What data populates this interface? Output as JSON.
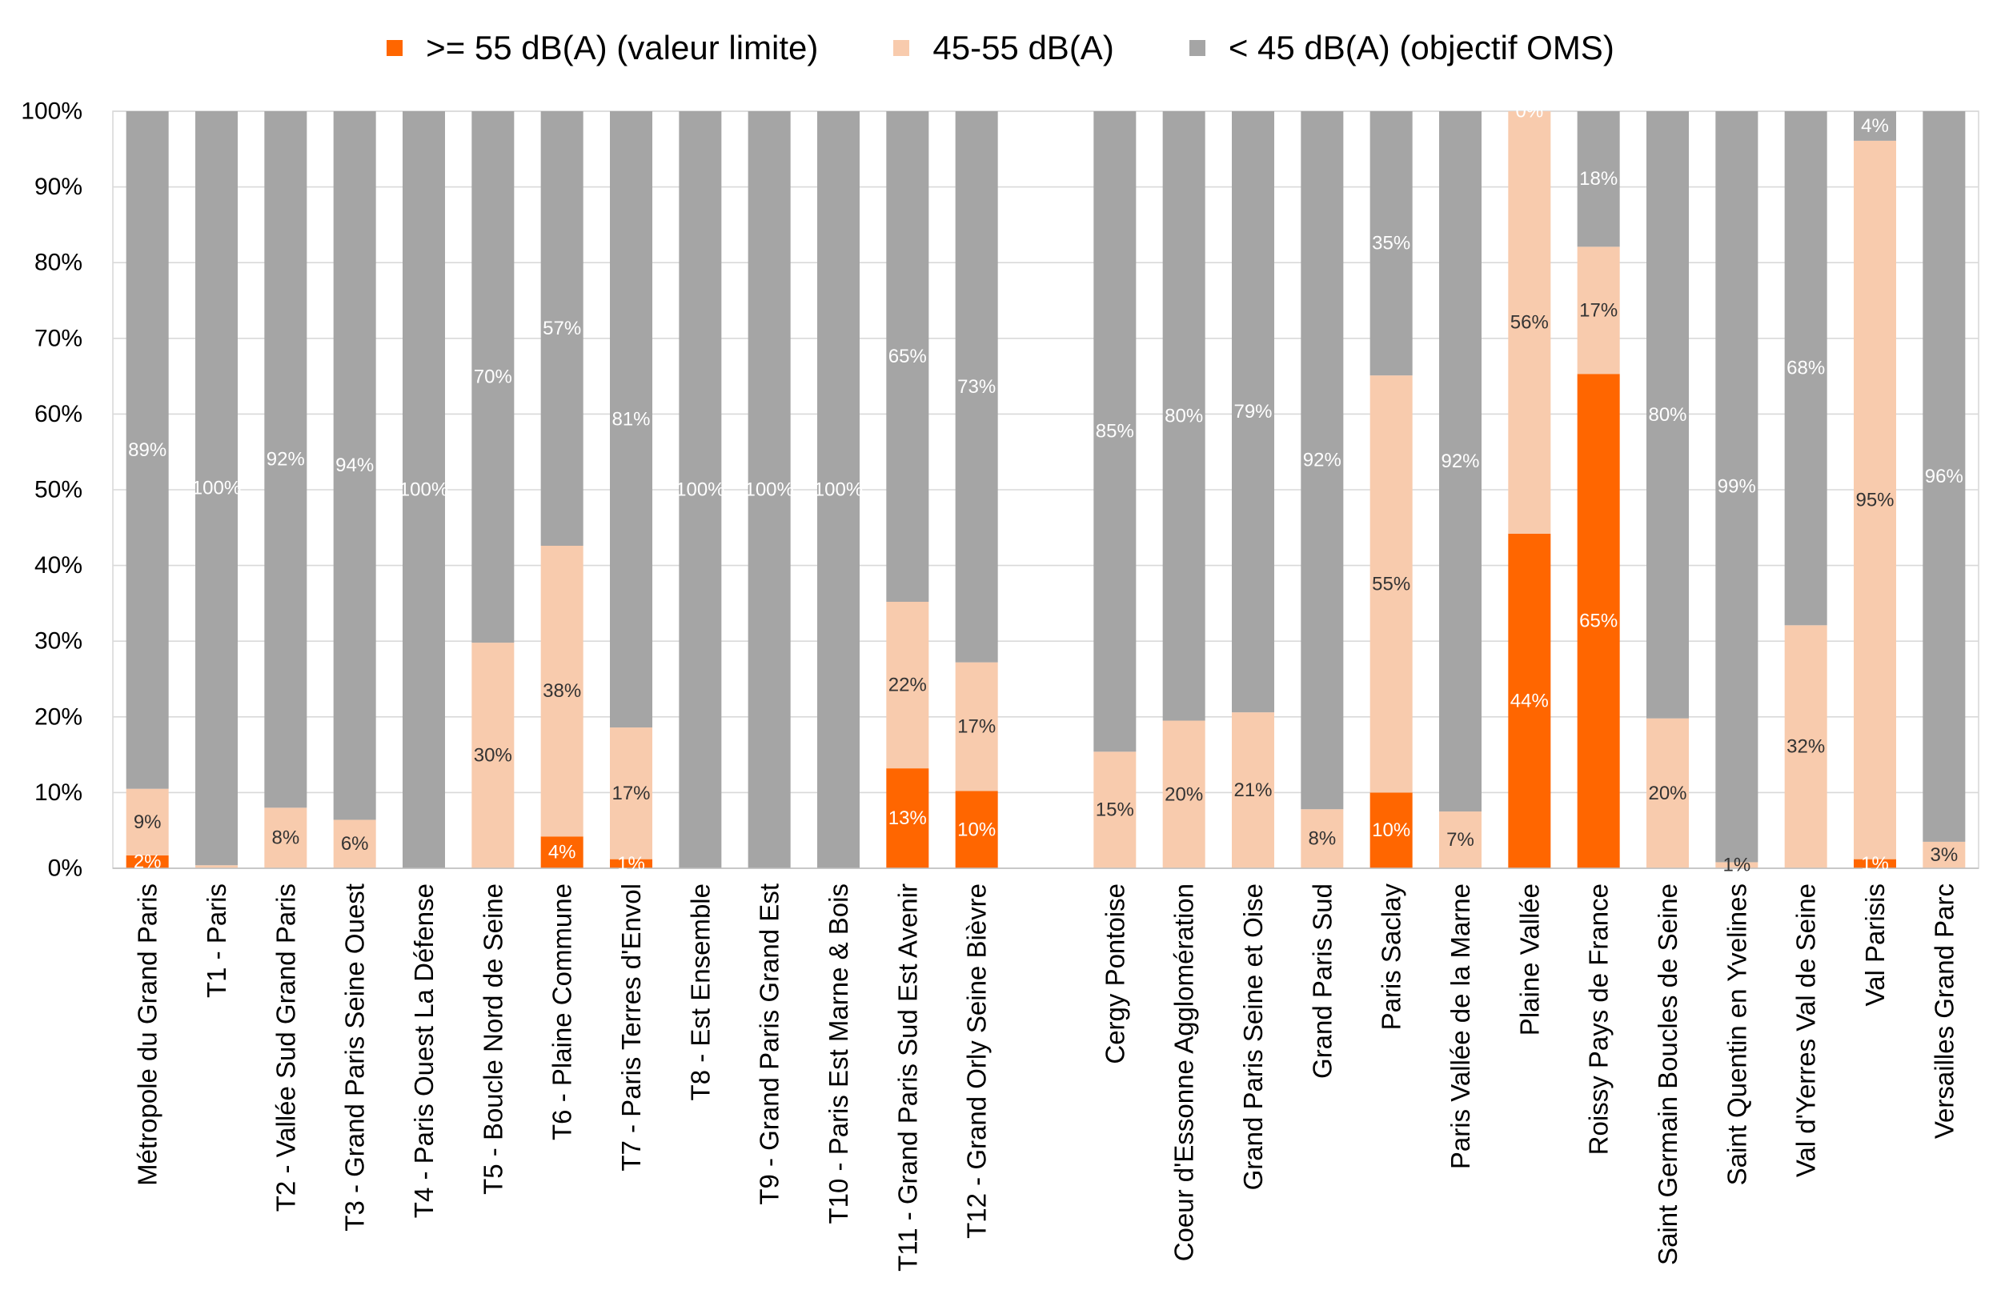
{
  "chart_data": {
    "type": "bar",
    "stacked": "percent",
    "title": "",
    "xlabel": "",
    "ylabel": "",
    "ylim": [
      0,
      100
    ],
    "yticks": [
      0,
      10,
      20,
      30,
      40,
      50,
      60,
      70,
      80,
      90,
      100
    ],
    "ytick_labels": [
      "0%",
      "10%",
      "20%",
      "30%",
      "40%",
      "50%",
      "60%",
      "70%",
      "80%",
      "90%",
      "100%"
    ],
    "grid": true,
    "legend_position": "top",
    "categories": [
      "Métropole du Grand Paris",
      "T1 - Paris",
      "T2 - Vallée Sud Grand Paris",
      "T3 - Grand Paris Seine Ouest",
      "T4 - Paris Ouest La Défense",
      "T5 - Boucle Nord de Seine",
      "T6 - Plaine Commune",
      "T7 - Paris Terres d'Envol",
      "T8 - Est Ensemble",
      "T9 - Grand Paris Grand Est",
      "T10 - Paris Est Marne & Bois",
      "T11 - Grand Paris Sud Est Avenir",
      "T12 - Grand Orly Seine Bièvre",
      "",
      "Cergy Pontoise",
      "Coeur d'Essonne Agglomération",
      "Grand Paris Seine et Oise",
      "Grand Paris Sud",
      "Paris Saclay",
      "Paris Vallée de la Marne",
      "Plaine Vallée",
      "Roissy Pays de France",
      "Saint Germain Boucles de Seine",
      "Saint Quentin en Yvelines",
      "Val d'Yerres Val de Seine",
      "Val Parisis",
      "Versailles Grand Parc"
    ],
    "series": [
      {
        "name": ">= 55 dB(A) (valeur limite)",
        "color": "#FF6600",
        "label_color": "#FFFFFF",
        "values": [
          1.7,
          0,
          0,
          0,
          0,
          0,
          4.2,
          1.2,
          0,
          0,
          0,
          13.2,
          10.2,
          null,
          0,
          0,
          0,
          0,
          10.0,
          0,
          44.2,
          65.3,
          0,
          0,
          0,
          1.2,
          0
        ],
        "labels": [
          "2%",
          "",
          "",
          "",
          "",
          "",
          "4%",
          "1%",
          "",
          "",
          "",
          "13%",
          "10%",
          "",
          "",
          "",
          "",
          "",
          "10%",
          "",
          "44%",
          "65%",
          "",
          "",
          "",
          "1%",
          ""
        ]
      },
      {
        "name": "45-55 dB(A)",
        "color": "#F8CBAD",
        "label_color": "#333333",
        "values": [
          8.8,
          0.4,
          8.0,
          6.4,
          0,
          29.8,
          38.4,
          17.4,
          0,
          0,
          0,
          22.0,
          17.0,
          null,
          15.4,
          19.5,
          20.6,
          7.8,
          55.1,
          7.5,
          55.8,
          16.8,
          19.8,
          0.8,
          32.1,
          94.9,
          3.5
        ],
        "labels": [
          "9%",
          "",
          "8%",
          "6%",
          "",
          "30%",
          "38%",
          "17%",
          "",
          "",
          "",
          "22%",
          "17%",
          "",
          "15%",
          "20%",
          "21%",
          "8%",
          "55%",
          "7%",
          "56%",
          "17%",
          "20%",
          "1%",
          "32%",
          "95%",
          "3%"
        ]
      },
      {
        "name": "< 45 dB(A) (objectif OMS)",
        "color": "#A5A5A5",
        "label_color": "#FFFFFF",
        "values": [
          89.5,
          99.6,
          92.0,
          93.6,
          100,
          70.2,
          57.4,
          81.4,
          100,
          100,
          100,
          64.8,
          72.8,
          null,
          84.6,
          80.5,
          79.4,
          92.2,
          34.9,
          92.5,
          0,
          17.9,
          80.2,
          99.2,
          67.9,
          3.9,
          96.5
        ],
        "labels": [
          "89%",
          "100%",
          "92%",
          "94%",
          "100%",
          "70%",
          "57%",
          "81%",
          "100%",
          "100%",
          "100%",
          "65%",
          "73%",
          "",
          "85%",
          "80%",
          "79%",
          "92%",
          "35%",
          "92%",
          "0%",
          "18%",
          "80%",
          "99%",
          "68%",
          "4%",
          "96%"
        ]
      }
    ]
  }
}
